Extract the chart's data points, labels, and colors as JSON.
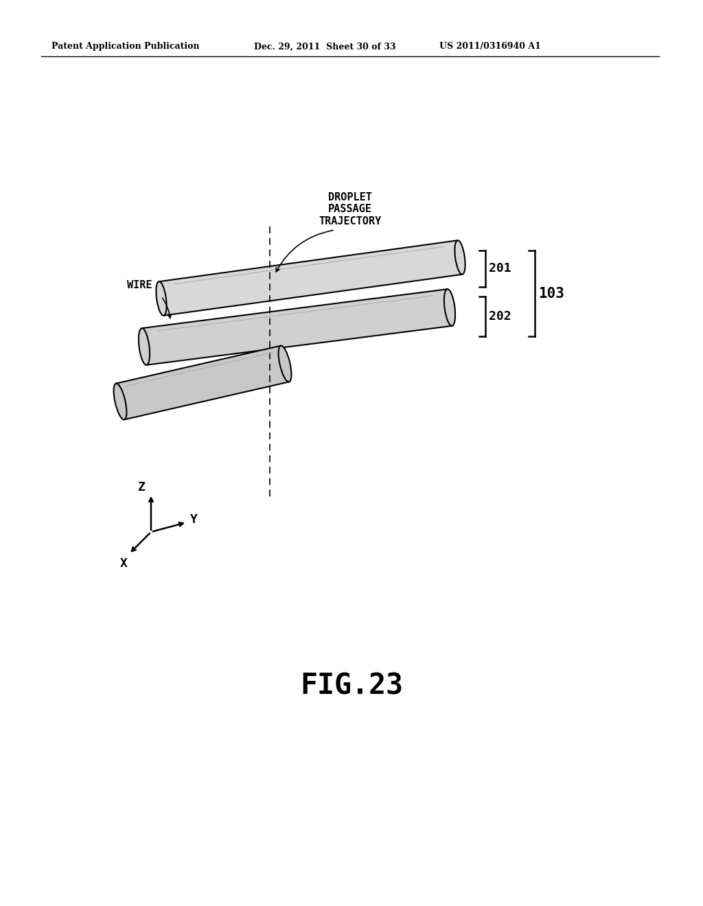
{
  "bg_color": "#ffffff",
  "header_left": "Patent Application Publication",
  "header_mid": "Dec. 29, 2011  Sheet 30 of 33",
  "header_right": "US 2011/0316940 A1",
  "figure_label": "FIG.23",
  "label_201": "201",
  "label_202": "202",
  "label_103": "103",
  "label_wire": "WIRE",
  "label_droplet": "DROPLET\nPASSAGE\nTRAJECTORY",
  "axis_z": "Z",
  "axis_y": "Y",
  "axis_x": "X"
}
